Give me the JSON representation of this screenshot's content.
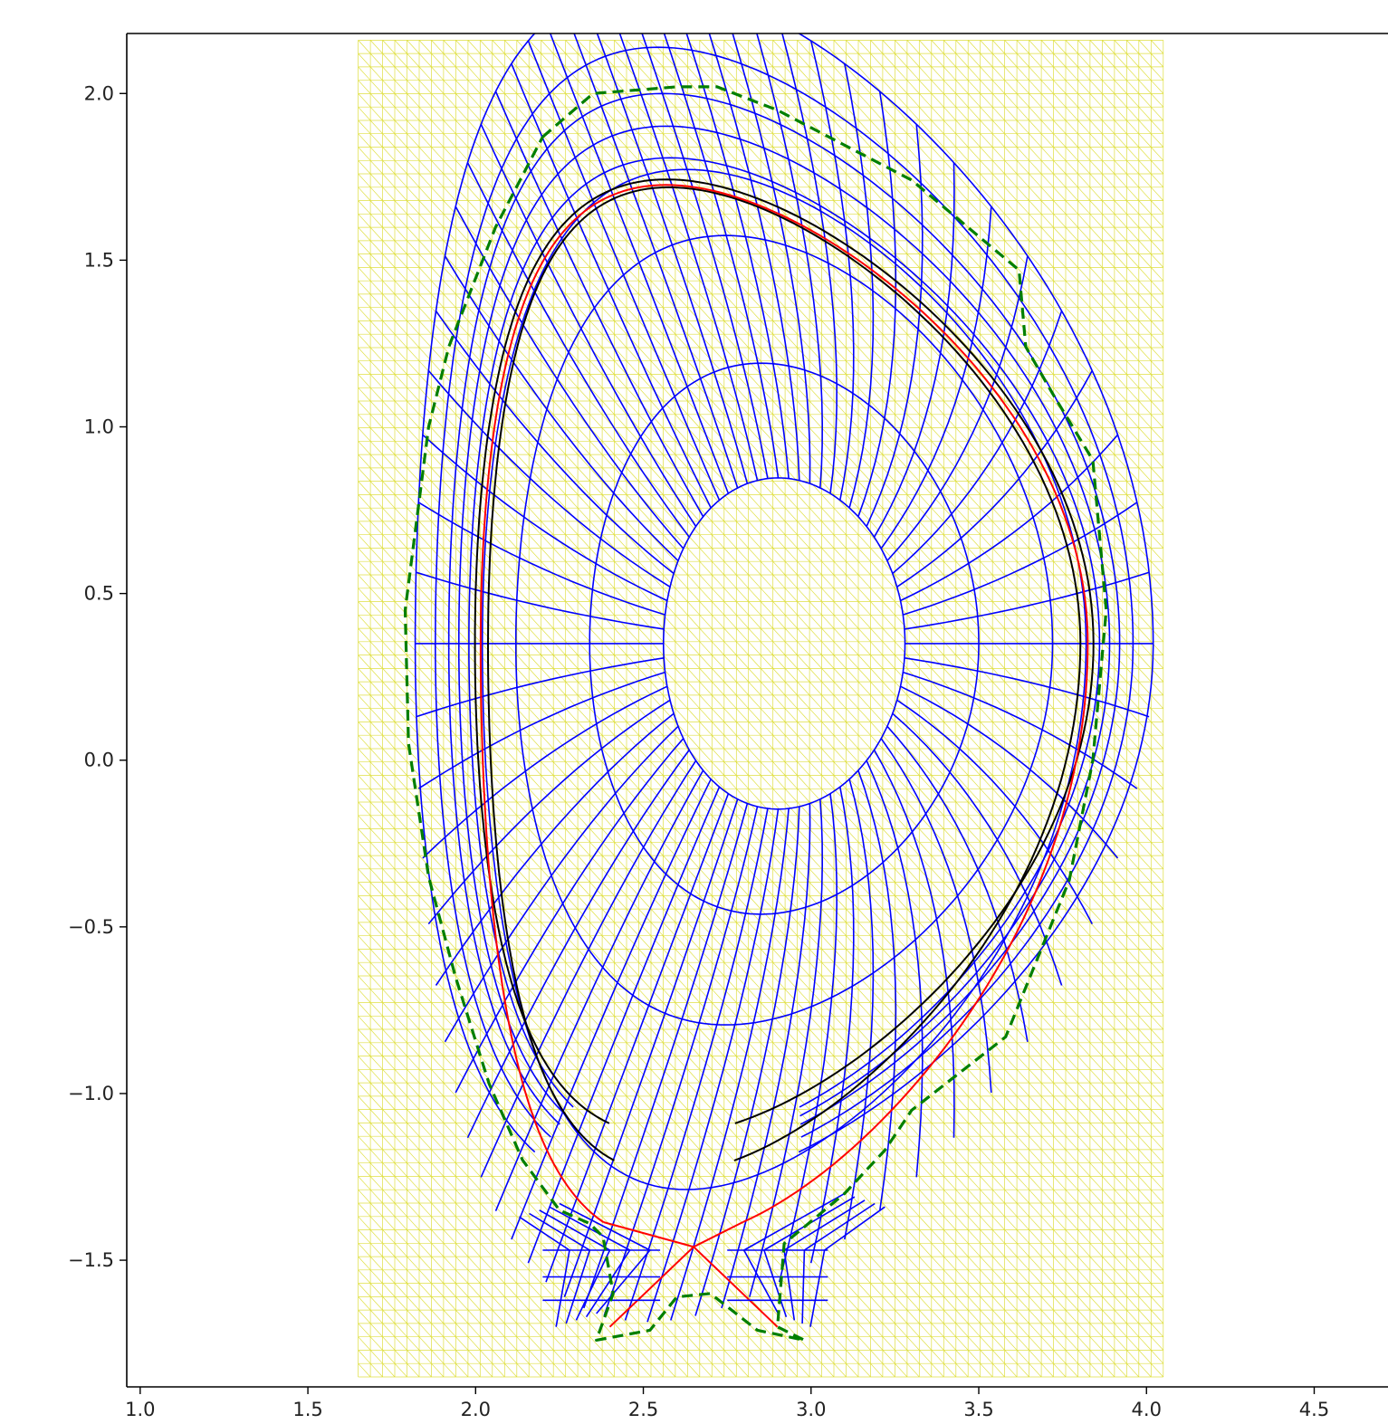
{
  "chart_data": {
    "type": "line",
    "title": "",
    "xlabel": "",
    "ylabel": "",
    "xlim": [
      0.96,
      4.72
    ],
    "ylim": [
      -1.88,
      2.18
    ],
    "x_ticks": [
      {
        "value": 1.0,
        "label": "1.0"
      },
      {
        "value": 1.5,
        "label": "1.5"
      },
      {
        "value": 2.0,
        "label": "2.0"
      },
      {
        "value": 2.5,
        "label": "2.5"
      },
      {
        "value": 3.0,
        "label": "3.0"
      },
      {
        "value": 3.5,
        "label": "3.5"
      },
      {
        "value": 4.0,
        "label": "4.0"
      },
      {
        "value": 4.5,
        "label": "4.5"
      }
    ],
    "y_ticks": [
      {
        "value": 2.0,
        "label": "2.0"
      },
      {
        "value": 1.5,
        "label": "1.5"
      },
      {
        "value": 1.0,
        "label": "1.0"
      },
      {
        "value": 0.5,
        "label": "0.5"
      },
      {
        "value": 0.0,
        "label": "0.0"
      },
      {
        "value": -0.5,
        "label": "−0.5"
      },
      {
        "value": -1.0,
        "label": "−1.0"
      },
      {
        "value": -1.5,
        "label": "−1.5"
      }
    ],
    "background_mesh": {
      "color": "#d4d400",
      "r_range": [
        1.65,
        4.05
      ],
      "z_range": [
        -1.85,
        2.16
      ],
      "nr": 66,
      "nz": 100
    },
    "magnetic_axis": [
      2.92,
      0.35
    ],
    "x_point": [
      2.65,
      -1.46
    ],
    "core_rings": [
      {
        "a": 0.36,
        "kappa_up": 1.38,
        "kappa_dn": 1.38,
        "delta": 0.05
      },
      {
        "a": 0.58,
        "kappa_up": 1.45,
        "kappa_dn": 1.4,
        "delta": 0.12
      },
      {
        "a": 0.8,
        "kappa_up": 1.53,
        "kappa_dn": 1.43,
        "delta": 0.22
      },
      {
        "a": 0.9,
        "kappa_up": 1.58,
        "kappa_dn": 1.82,
        "delta": 0.33
      }
    ],
    "separatrix": {
      "a": 0.905,
      "kappa_up": 1.52,
      "kappa_dn": 1.98,
      "delta": 0.4,
      "color": "#ff0000"
    },
    "outer_rings": [
      {
        "a": 0.94,
        "kappa_up": 1.55,
        "kappa_dn": 1.6,
        "delta": 0.37
      },
      {
        "a": 0.97,
        "kappa_up": 1.6,
        "kappa_dn": 1.58,
        "delta": 0.37
      },
      {
        "a": 1.0,
        "kappa_up": 1.65,
        "kappa_dn": 1.56,
        "delta": 0.37
      },
      {
        "a": 1.04,
        "kappa_up": 1.72,
        "kappa_dn": 1.54,
        "delta": 0.37
      },
      {
        "a": 1.1,
        "kappa_up": 1.8,
        "kappa_dn": 1.5,
        "delta": 0.38
      }
    ],
    "black_rings": [
      {
        "a": 0.883,
        "kappa_up": 1.55,
        "kappa_dn": 1.8,
        "delta": 0.4
      },
      {
        "a": 0.922,
        "kappa_up": 1.51,
        "kappa_dn": 1.6,
        "delta": 0.39
      }
    ],
    "radial_spokes": 72,
    "divertor_legs": {
      "inner": {
        "start": [
          2.65,
          -1.46
        ],
        "end": [
          2.4,
          -1.7
        ]
      },
      "outer": {
        "start": [
          2.65,
          -1.46
        ],
        "end": [
          2.9,
          -1.7
        ]
      }
    },
    "wall": {
      "color": "#007f00",
      "dash": true,
      "points": [
        [
          2.2,
          1.87
        ],
        [
          2.35,
          2.0
        ],
        [
          2.6,
          2.02
        ],
        [
          2.72,
          2.02
        ],
        [
          2.9,
          1.95
        ],
        [
          3.3,
          1.74
        ],
        [
          3.62,
          1.47
        ],
        [
          3.64,
          1.24
        ],
        [
          3.72,
          1.1
        ],
        [
          3.84,
          0.9
        ],
        [
          3.88,
          0.45
        ],
        [
          3.84,
          0.0
        ],
        [
          3.77,
          -0.36
        ],
        [
          3.58,
          -0.83
        ],
        [
          3.3,
          -1.05
        ],
        [
          3.22,
          -1.17
        ],
        [
          3.1,
          -1.3
        ],
        [
          2.98,
          -1.4
        ],
        [
          2.92,
          -1.45
        ],
        [
          2.9,
          -1.7
        ],
        [
          2.98,
          -1.74
        ],
        [
          2.84,
          -1.71
        ],
        [
          2.7,
          -1.6
        ],
        [
          2.6,
          -1.61
        ],
        [
          2.52,
          -1.71
        ],
        [
          2.36,
          -1.74
        ],
        [
          2.41,
          -1.6
        ],
        [
          2.38,
          -1.43
        ],
        [
          2.34,
          -1.39
        ],
        [
          2.25,
          -1.35
        ],
        [
          2.14,
          -1.2
        ],
        [
          2.04,
          -0.97
        ],
        [
          1.94,
          -0.65
        ],
        [
          1.86,
          -0.35
        ],
        [
          1.8,
          0.05
        ],
        [
          1.79,
          0.45
        ],
        [
          1.86,
          1.0
        ],
        [
          1.92,
          1.24
        ],
        [
          2.06,
          1.6
        ],
        [
          2.2,
          1.87
        ]
      ]
    },
    "grid": false,
    "legend": false,
    "colors": {
      "mesh": "#d4d400",
      "grid_lines": "#0000ff",
      "flux_surface": "#000000",
      "separatrix": "#ff0000",
      "wall": "#007f00"
    }
  }
}
